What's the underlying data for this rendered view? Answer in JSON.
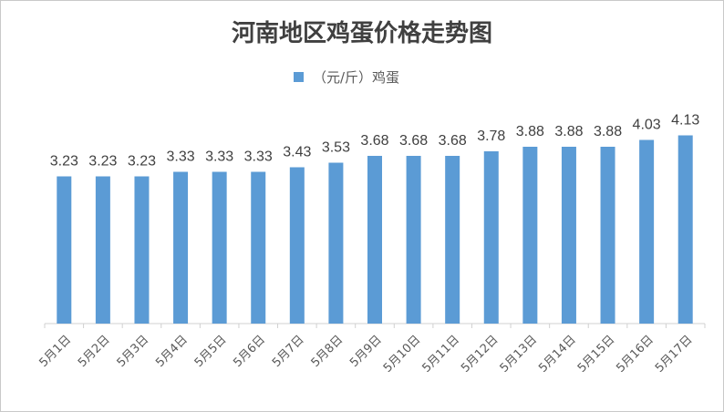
{
  "chart_data": {
    "type": "bar",
    "title": "河南地区鸡蛋价格走势图",
    "categories": [
      "5月1日",
      "5月2日",
      "5月3日",
      "5月4日",
      "5月5日",
      "5月6日",
      "5月7日",
      "5月8日",
      "5月9日",
      "5月10日",
      "5月11日",
      "5月12日",
      "5月13日",
      "5月14日",
      "5月15日",
      "5月16日",
      "5月17日"
    ],
    "series": [
      {
        "name": "（元/斤）鸡蛋",
        "values": [
          3.23,
          3.23,
          3.23,
          3.33,
          3.33,
          3.33,
          3.43,
          3.53,
          3.68,
          3.68,
          3.68,
          3.78,
          3.88,
          3.88,
          3.88,
          4.03,
          4.13
        ],
        "color": "#5b9bd5"
      }
    ],
    "value_labels": [
      "3.23",
      "3.23",
      "3.23",
      "3.33",
      "3.33",
      "3.33",
      "3.43",
      "3.53",
      "3.68",
      "3.68",
      "3.68",
      "3.78",
      "3.88",
      "3.88",
      "3.88",
      "4.03",
      "4.13"
    ],
    "ylim": [
      0,
      4.8
    ],
    "grid": false,
    "legend_position": "top-center"
  }
}
